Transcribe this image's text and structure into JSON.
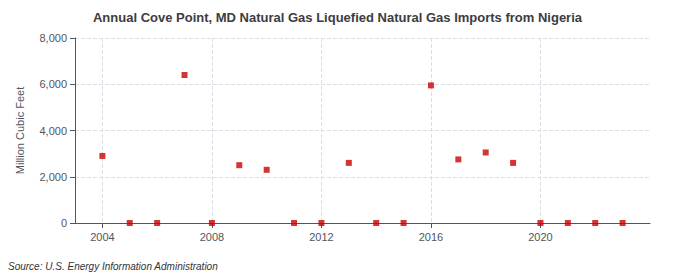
{
  "chart_data": {
    "type": "scatter",
    "title": "Annual Cove Point, MD Natural Gas Liquefied Natural Gas Imports from Nigeria",
    "ylabel": "Million Cubic Feet",
    "annotations": [
      "Source: U.S. Energy Information Administration"
    ],
    "x": [
      2004,
      2005,
      2006,
      2007,
      2008,
      2009,
      2010,
      2011,
      2012,
      2013,
      2014,
      2015,
      2016,
      2017,
      2018,
      2019,
      2020,
      2021,
      2022,
      2023
    ],
    "values": [
      2900,
      0,
      0,
      6400,
      0,
      2500,
      2300,
      0,
      0,
      2600,
      0,
      0,
      5950,
      2750,
      3050,
      2600,
      0,
      0,
      0,
      0
    ],
    "color": "#cc0000",
    "marker": "square",
    "xlim": [
      2003.0,
      2024.0
    ],
    "xticks": [
      2004,
      2008,
      2012,
      2016,
      2020
    ],
    "ylim": [
      0,
      8000
    ],
    "yticks": [
      0,
      {
        "value": 2000,
        "label": "2,000"
      },
      {
        "value": 4000,
        "label": "4,000"
      },
      {
        "value": 6000,
        "label": "6,000"
      },
      {
        "value": 8000,
        "label": "8,000"
      }
    ],
    "grid": true
  }
}
